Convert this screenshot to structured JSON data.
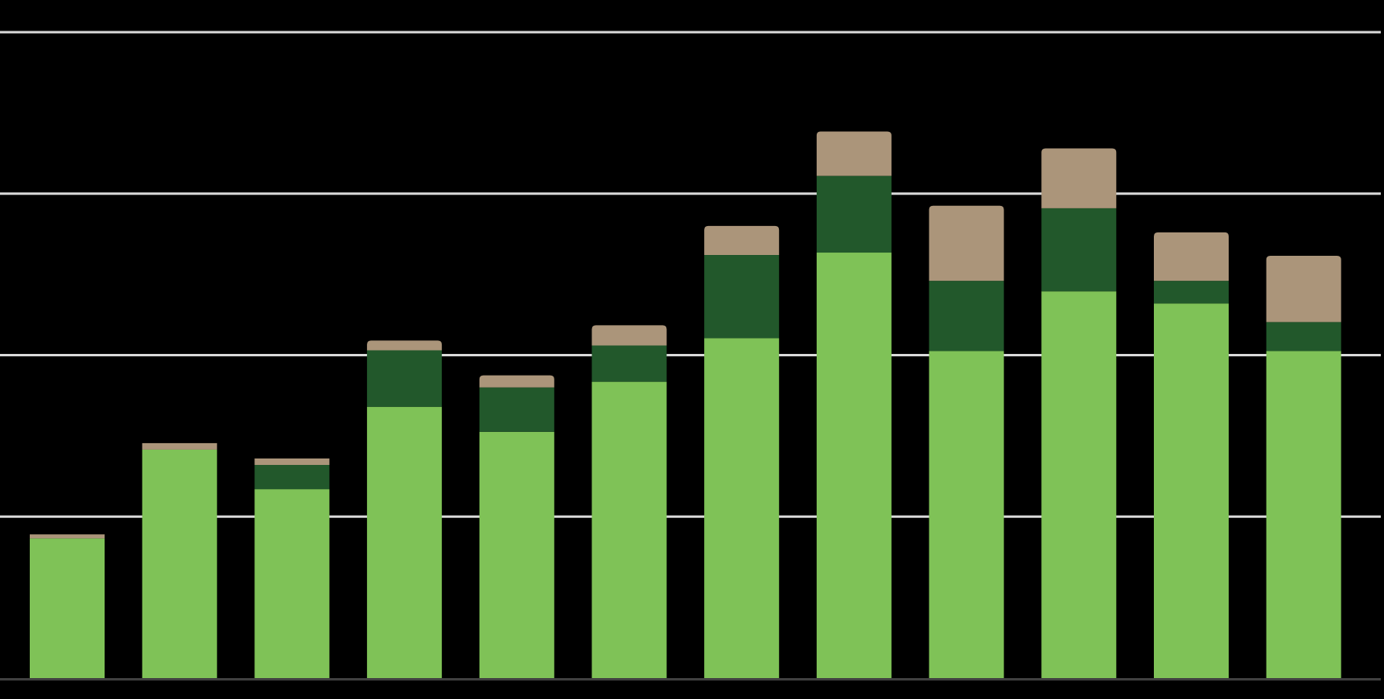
{
  "chart_data": {
    "type": "bar",
    "stacked": true,
    "title": "",
    "xlabel": "",
    "ylabel": "",
    "categories": [
      "",
      "",
      "",
      "",
      "",
      "",
      "",
      "",
      "",
      "",
      "",
      ""
    ],
    "series": [
      {
        "color": "#7fc257",
        "values": [
          1.73,
          2.83,
          2.34,
          3.36,
          3.05,
          3.67,
          4.21,
          5.27,
          4.05,
          4.79,
          4.64,
          4.05
        ]
      },
      {
        "color": "#22582b",
        "values": [
          0.0,
          0.0,
          0.3,
          0.7,
          0.55,
          0.45,
          1.03,
          0.95,
          0.87,
          1.03,
          0.28,
          0.36
        ]
      },
      {
        "color": "#ab957a",
        "values": [
          0.05,
          0.08,
          0.08,
          0.12,
          0.15,
          0.25,
          0.36,
          0.55,
          0.93,
          0.74,
          0.6,
          0.82
        ]
      }
    ],
    "ylim": [
      0,
      8
    ],
    "gridlines": [
      2,
      4,
      6,
      8
    ],
    "grid": true,
    "legend": "none",
    "colors": {
      "background": "#000000",
      "gridline": "#d9d9d9",
      "baseline": "#404040"
    }
  }
}
